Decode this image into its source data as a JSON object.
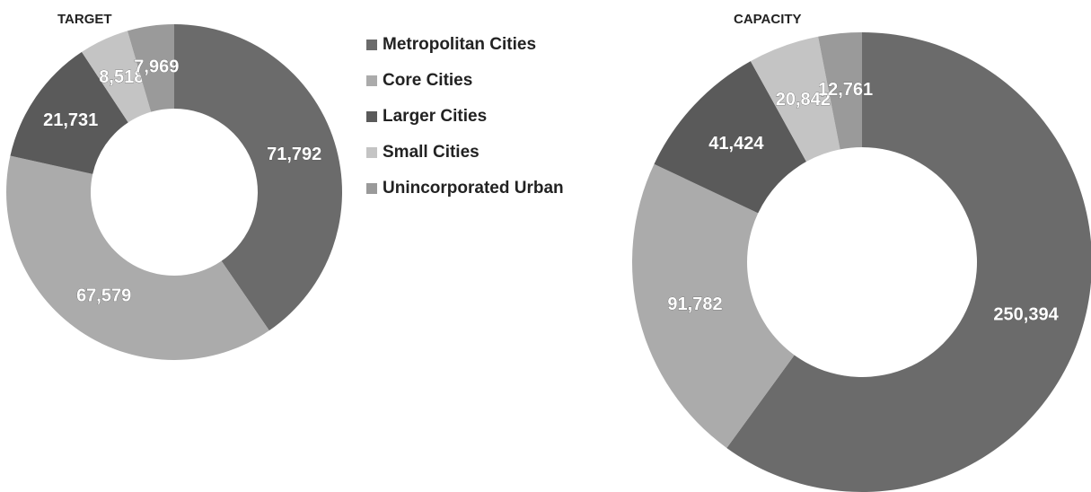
{
  "legend": [
    "Metropolitan Cities",
    "Core Cities",
    "Larger Cities",
    "Small Cities",
    "Unincorporated Urban"
  ],
  "colors": [
    "#6b6b6b",
    "#ababab",
    "#5a5a5a",
    "#c4c4c4",
    "#9a9a9a"
  ],
  "chart_data": [
    {
      "type": "pie",
      "title": "TARGET",
      "donut": true,
      "values": [
        71792,
        67579,
        21731,
        8518,
        7969
      ],
      "value_labels": [
        "71,792",
        "67,579",
        "21,731",
        "8,518",
        "7,969"
      ]
    },
    {
      "type": "pie",
      "title": "CAPACITY",
      "donut": true,
      "values": [
        250394,
        91782,
        41424,
        20842,
        12761
      ],
      "value_labels": [
        "250,394",
        "91,782",
        "41,424",
        "20,842",
        "12,761"
      ]
    }
  ]
}
